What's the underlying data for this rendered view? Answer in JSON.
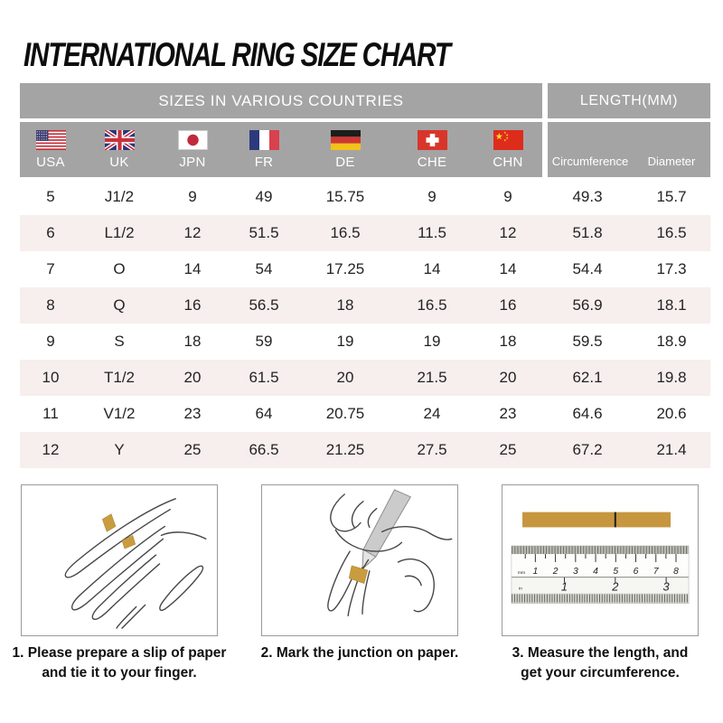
{
  "title": "INTERNATIONAL RING SIZE CHART",
  "chart_data": {
    "type": "table",
    "title": "INTERNATIONAL RING SIZE CHART",
    "column_groups": {
      "sizes": "SIZES IN VARIOUS COUNTRIES",
      "length": "LENGTH(MM)"
    },
    "columns": [
      {
        "label": "USA",
        "icon": "usa-flag-icon"
      },
      {
        "label": "UK",
        "icon": "uk-flag-icon"
      },
      {
        "label": "JPN",
        "icon": "japan-flag-icon"
      },
      {
        "label": "FR",
        "icon": "france-flag-icon"
      },
      {
        "label": "DE",
        "icon": "germany-flag-icon"
      },
      {
        "label": "CHE",
        "icon": "switzerland-flag-icon"
      },
      {
        "label": "CHN",
        "icon": "china-flag-icon"
      },
      {
        "label": "Circumference"
      },
      {
        "label": "Diameter"
      }
    ],
    "rows": [
      [
        "5",
        "J1/2",
        "9",
        "49",
        "15.75",
        "9",
        "9",
        "49.3",
        "15.7"
      ],
      [
        "6",
        "L1/2",
        "12",
        "51.5",
        "16.5",
        "11.5",
        "12",
        "51.8",
        "16.5"
      ],
      [
        "7",
        "O",
        "14",
        "54",
        "17.25",
        "14",
        "14",
        "54.4",
        "17.3"
      ],
      [
        "8",
        "Q",
        "16",
        "56.5",
        "18",
        "16.5",
        "16",
        "56.9",
        "18.1"
      ],
      [
        "9",
        "S",
        "18",
        "59",
        "19",
        "19",
        "18",
        "59.5",
        "18.9"
      ],
      [
        "10",
        "T1/2",
        "20",
        "61.5",
        "20",
        "21.5",
        "20",
        "62.1",
        "19.8"
      ],
      [
        "11",
        "V1/2",
        "23",
        "64",
        "20.75",
        "24",
        "23",
        "64.6",
        "20.6"
      ],
      [
        "12",
        "Y",
        "25",
        "66.5",
        "21.25",
        "27.5",
        "25",
        "67.2",
        "21.4"
      ]
    ]
  },
  "steps": [
    {
      "illustration": "hand-with-paper-strip",
      "lines": [
        "1. Please prepare a slip of paper",
        "and tie it to your finger."
      ]
    },
    {
      "illustration": "mark-junction-with-pen",
      "lines": [
        "2. Mark the junction on paper."
      ]
    },
    {
      "illustration": "measure-with-ruler",
      "lines": [
        "3. Measure the length, and",
        "get your circumference."
      ]
    }
  ],
  "ruler": {
    "unit_top": "mm",
    "unit_bottom": "in",
    "top_scale": [
      "1",
      "2",
      "3",
      "4",
      "5",
      "6",
      "7",
      "8"
    ],
    "bottom_scale": [
      "1",
      "2",
      "3"
    ]
  },
  "colors": {
    "header_gray": "#a4a4a4",
    "row_alt": "#f7efed",
    "paper_gold": "#c6973f",
    "title_black": "#0d0d0d"
  }
}
